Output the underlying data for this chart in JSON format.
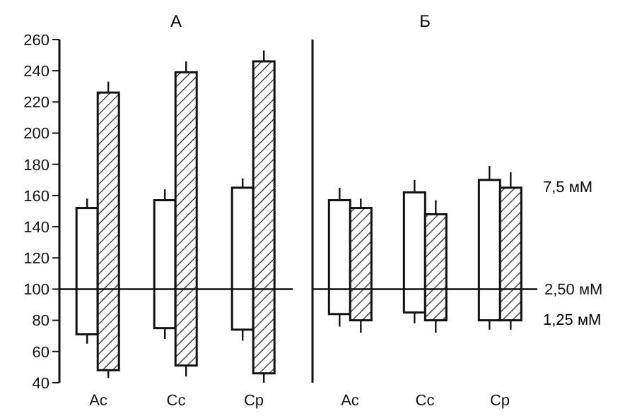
{
  "chart_data": [
    {
      "type": "bar",
      "title": "А",
      "categories": [
        "Ас",
        "Сс",
        "Ср"
      ],
      "series": [
        {
          "color": "#ffffff",
          "base": [
            71,
            75,
            74
          ],
          "values": [
            81,
            82,
            91
          ],
          "errors": [
            [
              65,
              158
            ],
            [
              68,
              164
            ],
            [
              67,
              171
            ]
          ]
        },
        {
          "color": "#1a1a1a",
          "base": [
            48,
            51,
            46
          ],
          "values": [
            178,
            188,
            200
          ],
          "errors": [
            [
              43,
              233
            ],
            [
              44,
              246
            ],
            [
              40,
              253
            ]
          ]
        }
      ],
      "ylim": [
        40,
        260
      ],
      "yticks": [
        40,
        60,
        80,
        100,
        120,
        140,
        160,
        180,
        200,
        220,
        240,
        260
      ],
      "ref_lines": [
        {
          "axis": "y",
          "value": 100
        }
      ]
    },
    {
      "type": "bar",
      "title": "Б",
      "categories": [
        "Ас",
        "Сс",
        "Ср"
      ],
      "series": [
        {
          "color": "#ffffff",
          "base": [
            84,
            85,
            80
          ],
          "values": [
            73,
            77,
            90
          ],
          "errors": [
            [
              76,
              165
            ],
            [
              78,
              170
            ],
            [
              74,
              179
            ]
          ]
        },
        {
          "color": "#1a1a1a",
          "base": [
            80,
            80,
            80
          ],
          "values": [
            72,
            68,
            85
          ],
          "errors": [
            [
              72,
              158
            ],
            [
              72,
              157
            ],
            [
              74,
              175
            ]
          ]
        }
      ],
      "ylim": [
        40,
        260
      ],
      "yticks": [
        40,
        60,
        80,
        100,
        120,
        140,
        160,
        180,
        200,
        220,
        240,
        260
      ],
      "tick_labels": "x",
      "ref_lines": [
        {
          "axis": "y",
          "value": 100,
          "label": "2,50 мМ"
        }
      ],
      "annotations": [
        {
          "text": "7,5 мМ",
          "x": "Ср",
          "y": 165
        },
        {
          "text": "1,25 мМ",
          "x": "Ср",
          "y": 80
        }
      ]
    }
  ]
}
